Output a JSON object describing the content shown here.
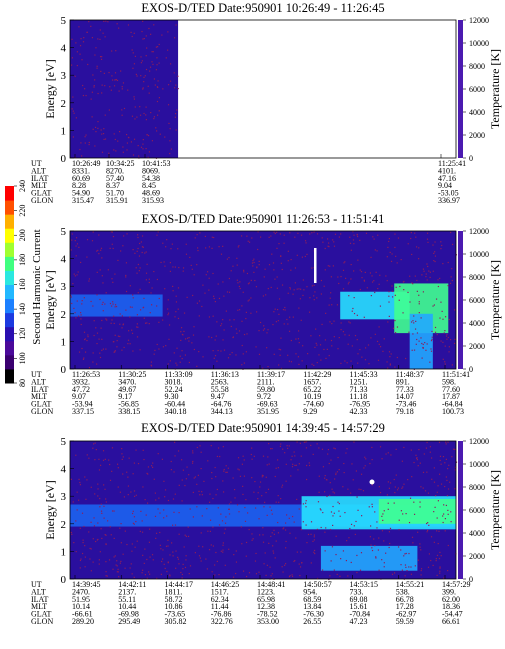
{
  "colors": {
    "background": "#2a0f9e",
    "noise": "#8b1d5c",
    "colormap": [
      "#000000",
      "#4b0082",
      "#2a0f9e",
      "#1030d8",
      "#1c63f0",
      "#22a8ff",
      "#28e0ff",
      "#40ff90",
      "#e0ff20",
      "#ff9a00",
      "#ff0000"
    ]
  },
  "colorbar": {
    "label": "Second Harmonic Current",
    "ticks": [
      "80",
      "100",
      "120",
      "140",
      "160",
      "180",
      "200",
      "220",
      "240"
    ]
  },
  "panels": [
    {
      "title": "EXOS-D/TED   Date:950901  10:26:49 - 11:26:45",
      "ylabel": "Energy [eV]",
      "yticks": [
        "0",
        "1",
        "2",
        "3",
        "4",
        "5"
      ],
      "ylabel2": "Temperature [K]",
      "yticks2": [
        "0",
        "2000",
        "4000",
        "6000",
        "8000",
        "10000",
        "12000"
      ],
      "row_labels": [
        "UT",
        "ALT",
        "ILAT",
        "MLT",
        "GLAT",
        "GLON"
      ],
      "columns": [
        {
          "ut": "10:26:49",
          "alt": "8331.",
          "ilat": "60.69",
          "mlt": "8.28",
          "glat": "54.90",
          "glon": "315.47"
        },
        {
          "ut": "10:34:25",
          "alt": "8270.",
          "ilat": "57.40",
          "mlt": "8.37",
          "glat": "51.70",
          "glon": "315.91"
        },
        {
          "ut": "10:41:53",
          "alt": "8069.",
          "ilat": "54.38",
          "mlt": "8.45",
          "glat": "48.69",
          "glon": "315.93"
        },
        {
          "ut": "11:25:41",
          "alt": "4101.",
          "ilat": "47.16",
          "mlt": "9.04",
          "glat": "-53.05",
          "glon": "336.97"
        }
      ]
    },
    {
      "title": "EXOS-D/TED   Date:950901  11:26:53 - 11:51:41",
      "ylabel": "Energy [eV]",
      "yticks": [
        "0",
        "1",
        "2",
        "3",
        "4",
        "5"
      ],
      "ylabel2": "Temperature [K]",
      "yticks2": [
        "0",
        "2000",
        "4000",
        "6000",
        "8000",
        "10000",
        "12000"
      ],
      "row_labels": [
        "UT",
        "ALT",
        "ILAT",
        "MLT",
        "GLAT",
        "GLON"
      ],
      "columns": [
        {
          "ut": "11:26:53",
          "alt": "3932.",
          "ilat": "47.72",
          "mlt": "9.07",
          "glat": "-53.94",
          "glon": "337.15"
        },
        {
          "ut": "11:30:25",
          "alt": "3470.",
          "ilat": "49.67",
          "mlt": "9.17",
          "glat": "-56.85",
          "glon": "338.15"
        },
        {
          "ut": "11:33:09",
          "alt": "3018.",
          "ilat": "52.24",
          "mlt": "9.30",
          "glat": "-60.44",
          "glon": "340.18"
        },
        {
          "ut": "11:36:13",
          "alt": "2563.",
          "ilat": "55.58",
          "mlt": "9.47",
          "glat": "-64.76",
          "glon": "344.13"
        },
        {
          "ut": "11:39:17",
          "alt": "2111.",
          "ilat": "59.80",
          "mlt": "9.72",
          "glat": "-69.63",
          "glon": "351.95"
        },
        {
          "ut": "11:42:29",
          "alt": "1657.",
          "ilat": "65.22",
          "mlt": "10.19",
          "glat": "-74.60",
          "glon": "9.29"
        },
        {
          "ut": "11:45:33",
          "alt": "1251.",
          "ilat": "71.33",
          "mlt": "11.18",
          "glat": "-76.95",
          "glon": "42.33"
        },
        {
          "ut": "11:48:37",
          "alt": "891.",
          "ilat": "77.33",
          "mlt": "14.07",
          "glat": "-73.46",
          "glon": "79.18"
        },
        {
          "ut": "11:51:41",
          "alt": "598.",
          "ilat": "77.60",
          "mlt": "17.87",
          "glat": "-64.84",
          "glon": "100.73"
        }
      ]
    },
    {
      "title": "EXOS-D/TED   Date:950901  14:39:45 - 14:57:29",
      "ylabel": "Energy [eV]",
      "yticks": [
        "0",
        "1",
        "2",
        "3",
        "4",
        "5"
      ],
      "ylabel2": "Temperature [K]",
      "yticks2": [
        "0",
        "2000",
        "4000",
        "6000",
        "8000",
        "10000",
        "12000"
      ],
      "row_labels": [
        "UT",
        "ALT",
        "ILAT",
        "MLT",
        "GLAT",
        "GLON"
      ],
      "columns": [
        {
          "ut": "14:39:45",
          "alt": "2470.",
          "ilat": "51.95",
          "mlt": "10.14",
          "glat": "-66.61",
          "glon": "289.20"
        },
        {
          "ut": "14:42:11",
          "alt": "2137.",
          "ilat": "55.11",
          "mlt": "10.44",
          "glat": "-69.98",
          "glon": "295.49"
        },
        {
          "ut": "14:44:17",
          "alt": "1811.",
          "ilat": "58.72",
          "mlt": "10.86",
          "glat": "-73.65",
          "glon": "305.82"
        },
        {
          "ut": "14:46:25",
          "alt": "1517.",
          "ilat": "62.34",
          "mlt": "11.44",
          "glat": "-76.86",
          "glon": "322.76"
        },
        {
          "ut": "14:48:41",
          "alt": "1223.",
          "ilat": "65.98",
          "mlt": "12.38",
          "glat": "-78.52",
          "glon": "353.00"
        },
        {
          "ut": "14:50:57",
          "alt": "954.",
          "ilat": "68.59",
          "mlt": "13.84",
          "glat": "-76.30",
          "glon": "26.55"
        },
        {
          "ut": "14:53:15",
          "alt": "733.",
          "ilat": "69.08",
          "mlt": "15.61",
          "glat": "-70.84",
          "glon": "47.23"
        },
        {
          "ut": "14:55:21",
          "alt": "538.",
          "ilat": "66.78",
          "mlt": "17.28",
          "glat": "-62.97",
          "glon": "59.59"
        },
        {
          "ut": "14:57:29",
          "alt": "399.",
          "ilat": "62.00",
          "mlt": "18.36",
          "glat": "-54.47",
          "glon": "66.61"
        }
      ]
    }
  ],
  "chart_data": [
    {
      "type": "heatmap",
      "title": "EXOS-D/TED   Date:950901  10:26:49 - 11:26:45",
      "ylabel": "Energy [eV]",
      "ylim": [
        0,
        5
      ],
      "ylabel2": "Temperature [K]",
      "ylim2": [
        0,
        12000
      ],
      "x_ticks": [
        "10:26:49",
        "10:34:25",
        "10:41:53",
        "11:25:41"
      ],
      "data_coverage": [
        0.0,
        0.28
      ],
      "features": []
    },
    {
      "type": "heatmap",
      "title": "EXOS-D/TED   Date:950901  11:26:53 - 11:51:41",
      "ylabel": "Energy [eV]",
      "ylim": [
        0,
        5
      ],
      "ylabel2": "Temperature [K]",
      "ylim2": [
        0,
        12000
      ],
      "x_ticks": [
        "11:26:53",
        "11:30:25",
        "11:33:09",
        "11:36:13",
        "11:39:17",
        "11:42:29",
        "11:45:33",
        "11:48:37",
        "11:51:41"
      ],
      "data_coverage": [
        0.0,
        1.0
      ],
      "features": [
        {
          "t0": 0.0,
          "t1": 0.24,
          "e0": 1.9,
          "e1": 2.7,
          "level": 0.38
        },
        {
          "t0": 0.7,
          "t1": 0.88,
          "e0": 1.8,
          "e1": 2.8,
          "level": 0.55
        },
        {
          "t0": 0.84,
          "t1": 0.98,
          "e0": 1.3,
          "e1": 3.1,
          "level": 0.68
        },
        {
          "t0": 0.88,
          "t1": 0.94,
          "e0": 0.0,
          "e1": 2.0,
          "level": 0.42
        }
      ]
    },
    {
      "type": "heatmap",
      "title": "EXOS-D/TED   Date:950901  14:39:45 - 14:57:29",
      "ylabel": "Energy [eV]",
      "ylim": [
        0,
        5
      ],
      "ylabel2": "Temperature [K]",
      "ylim2": [
        0,
        12000
      ],
      "x_ticks": [
        "14:39:45",
        "14:42:11",
        "14:44:17",
        "14:46:25",
        "14:48:41",
        "14:50:57",
        "14:53:15",
        "14:55:21",
        "14:57:29"
      ],
      "data_coverage": [
        0.0,
        1.0
      ],
      "features": [
        {
          "t0": 0.0,
          "t1": 1.0,
          "e0": 1.9,
          "e1": 2.7,
          "level": 0.34
        },
        {
          "t0": 0.6,
          "t1": 1.0,
          "e0": 1.8,
          "e1": 3.0,
          "level": 0.55
        },
        {
          "t0": 0.8,
          "t1": 1.0,
          "e0": 2.0,
          "e1": 2.9,
          "level": 0.68
        },
        {
          "t0": 0.65,
          "t1": 0.9,
          "e0": 0.3,
          "e1": 1.2,
          "level": 0.42
        }
      ]
    }
  ]
}
